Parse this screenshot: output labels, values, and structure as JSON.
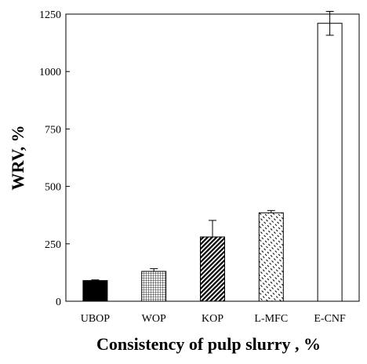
{
  "chart_data": {
    "type": "bar",
    "title": "",
    "xlabel": "Consistency of pulp slurry , %",
    "ylabel": "WRV, %",
    "ylim": [
      0,
      1250
    ],
    "yticks": [
      0,
      250,
      500,
      750,
      1000,
      1250
    ],
    "categories": [
      "UBOP",
      "WOP",
      "KOP",
      "L-MFC",
      "E-CNF"
    ],
    "values": [
      90,
      130,
      280,
      385,
      1210
    ],
    "errors": [
      3,
      12,
      72,
      10,
      52
    ],
    "fills": [
      "solid-black",
      "grid",
      "diagonal-dense",
      "diagonal-dashed",
      "white"
    ],
    "grid": false,
    "legend": "none"
  }
}
